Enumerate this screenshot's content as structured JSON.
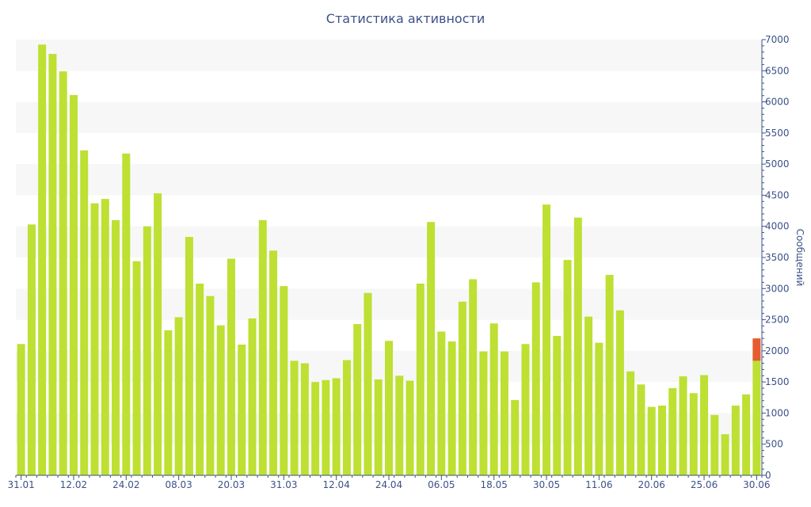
{
  "chart_data": {
    "type": "bar",
    "title": "Статистика активности",
    "xlabel": "",
    "ylabel": "Сообщений",
    "y_axis_side": "right",
    "ylim": [
      0,
      7000
    ],
    "yticks": [
      0,
      500,
      1000,
      1500,
      2000,
      2500,
      3000,
      3500,
      4000,
      4500,
      5000,
      5500,
      6000,
      6500,
      7000
    ],
    "x_tick_labels": [
      "31.01",
      "12.02",
      "24.02",
      "08.03",
      "20.03",
      "31.03",
      "12.04",
      "24.04",
      "06.05",
      "18.05",
      "30.05",
      "11.06",
      "20.06",
      "25.06",
      "30.06"
    ],
    "x_tick_positions": [
      0,
      5,
      10,
      15,
      20,
      25,
      30,
      35,
      40,
      45,
      50,
      55,
      60,
      65,
      70
    ],
    "grid": "horizontal alternating bands",
    "colors": {
      "bar": "#bde033",
      "highlight": "#e65c2e",
      "text": "#3b5187",
      "band": "#f7f7f7",
      "axis": "#3b5187"
    },
    "series": [
      {
        "values": [
          2110,
          4030,
          6920,
          6770,
          6490,
          6110,
          5220,
          4370,
          4440,
          4100,
          5170,
          3440,
          4000,
          4530,
          2330,
          2540,
          3830,
          3080,
          2880,
          2410,
          3480,
          2100,
          2520,
          4100,
          3610,
          3040,
          1840,
          1800,
          1500,
          1530,
          1560,
          1850,
          2430,
          2930,
          1540,
          2160,
          1600,
          1520,
          3080,
          4070,
          2310,
          2150,
          2790,
          3150,
          1990,
          2440,
          1990,
          1210,
          2110,
          3100,
          4350,
          2240,
          3460,
          4140,
          2550,
          2130,
          3220,
          2650,
          1670,
          1460,
          1100,
          1120,
          1400,
          1590,
          1320,
          1610,
          970,
          660,
          1120,
          1300,
          1840
        ]
      },
      {
        "values": [
          0,
          0,
          0,
          0,
          0,
          0,
          0,
          0,
          0,
          0,
          0,
          0,
          0,
          0,
          0,
          0,
          0,
          0,
          0,
          0,
          0,
          0,
          0,
          0,
          0,
          0,
          0,
          0,
          0,
          0,
          0,
          0,
          0,
          0,
          0,
          0,
          0,
          0,
          0,
          0,
          0,
          0,
          0,
          0,
          0,
          0,
          0,
          0,
          0,
          0,
          0,
          0,
          0,
          0,
          0,
          0,
          0,
          0,
          0,
          0,
          0,
          0,
          0,
          0,
          0,
          0,
          0,
          0,
          0,
          0,
          360
        ]
      }
    ]
  }
}
